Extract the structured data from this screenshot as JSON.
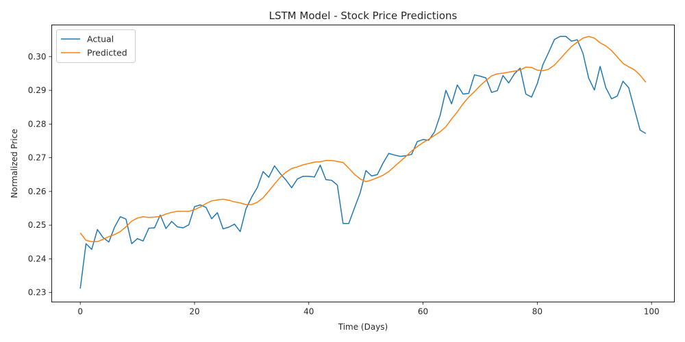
{
  "chart_data": {
    "type": "line",
    "title": "LSTM Model - Stock Price Predictions",
    "xlabel": "Time (Days)",
    "ylabel": "Normalized Price",
    "xlim": [
      -5,
      104
    ],
    "ylim": [
      0.2272,
      0.3094
    ],
    "x_ticks": [
      0,
      20,
      40,
      60,
      80,
      100
    ],
    "y_ticks": [
      0.23,
      0.24,
      0.25,
      0.26,
      0.27,
      0.28,
      0.29,
      0.3
    ],
    "y_tick_labels": [
      "0.23",
      "0.24",
      "0.25",
      "0.26",
      "0.27",
      "0.28",
      "0.29",
      "0.30"
    ],
    "grid": false,
    "legend_position": "upper-left",
    "x": [
      0,
      1,
      2,
      3,
      4,
      5,
      6,
      7,
      8,
      9,
      10,
      11,
      12,
      13,
      14,
      15,
      16,
      17,
      18,
      19,
      20,
      21,
      22,
      23,
      24,
      25,
      26,
      27,
      28,
      29,
      30,
      31,
      32,
      33,
      34,
      35,
      36,
      37,
      38,
      39,
      40,
      41,
      42,
      43,
      44,
      45,
      46,
      47,
      48,
      49,
      50,
      51,
      52,
      53,
      54,
      55,
      56,
      57,
      58,
      59,
      60,
      61,
      62,
      63,
      64,
      65,
      66,
      67,
      68,
      69,
      70,
      71,
      72,
      73,
      74,
      75,
      76,
      77,
      78,
      79,
      80,
      81,
      82,
      83,
      84,
      85,
      86,
      87,
      88,
      89,
      90,
      91,
      92,
      93,
      94,
      95,
      96,
      97,
      98,
      99
    ],
    "series": [
      {
        "name": "Actual",
        "color": "#1f77b4",
        "values": [
          0.2312,
          0.2445,
          0.2428,
          0.2487,
          0.2463,
          0.245,
          0.2494,
          0.2525,
          0.2518,
          0.2445,
          0.246,
          0.2453,
          0.2491,
          0.2492,
          0.253,
          0.249,
          0.2511,
          0.2495,
          0.2492,
          0.2501,
          0.2555,
          0.256,
          0.2553,
          0.2519,
          0.2537,
          0.2489,
          0.2494,
          0.2503,
          0.2481,
          0.2548,
          0.2583,
          0.2612,
          0.2659,
          0.2642,
          0.2676,
          0.2653,
          0.2634,
          0.2611,
          0.2637,
          0.2645,
          0.2645,
          0.2643,
          0.2678,
          0.2635,
          0.2633,
          0.2619,
          0.2505,
          0.2505,
          0.2551,
          0.2596,
          0.2662,
          0.2646,
          0.265,
          0.2684,
          0.2713,
          0.2708,
          0.2704,
          0.2706,
          0.271,
          0.2748,
          0.2754,
          0.2752,
          0.2776,
          0.2826,
          0.29,
          0.286,
          0.2916,
          0.2889,
          0.2891,
          0.2946,
          0.2942,
          0.2937,
          0.2894,
          0.2899,
          0.2944,
          0.2922,
          0.2949,
          0.2966,
          0.2889,
          0.288,
          0.292,
          0.2977,
          0.3013,
          0.3051,
          0.306,
          0.306,
          0.3046,
          0.305,
          0.301,
          0.2936,
          0.2901,
          0.2971,
          0.2908,
          0.2875,
          0.2883,
          0.2927,
          0.2908,
          0.2845,
          0.2782,
          0.2772
        ]
      },
      {
        "name": "Predicted",
        "color": "#ff7f0e",
        "values": [
          0.2477,
          0.2455,
          0.2451,
          0.2451,
          0.2458,
          0.2466,
          0.2472,
          0.2481,
          0.2495,
          0.2512,
          0.2521,
          0.2525,
          0.2523,
          0.2524,
          0.2526,
          0.2533,
          0.2538,
          0.2541,
          0.2541,
          0.2541,
          0.2546,
          0.2554,
          0.2564,
          0.2572,
          0.2575,
          0.2577,
          0.2574,
          0.2569,
          0.2566,
          0.2561,
          0.2561,
          0.2568,
          0.2581,
          0.2601,
          0.2622,
          0.2642,
          0.2657,
          0.2668,
          0.2673,
          0.2679,
          0.2683,
          0.2687,
          0.2688,
          0.2692,
          0.2692,
          0.2689,
          0.2686,
          0.2669,
          0.2651,
          0.2637,
          0.2629,
          0.2634,
          0.2641,
          0.2648,
          0.2659,
          0.2674,
          0.2689,
          0.2704,
          0.272,
          0.2733,
          0.2745,
          0.2755,
          0.2766,
          0.2777,
          0.2792,
          0.2815,
          0.2836,
          0.286,
          0.288,
          0.2896,
          0.2914,
          0.2929,
          0.2943,
          0.2949,
          0.2951,
          0.2954,
          0.2957,
          0.296,
          0.2969,
          0.2968,
          0.296,
          0.2958,
          0.2963,
          0.2975,
          0.2993,
          0.3012,
          0.303,
          0.3043,
          0.3055,
          0.306,
          0.3055,
          0.3041,
          0.3032,
          0.3018,
          0.2999,
          0.298,
          0.297,
          0.2961,
          0.2945,
          0.2924
        ]
      }
    ]
  }
}
